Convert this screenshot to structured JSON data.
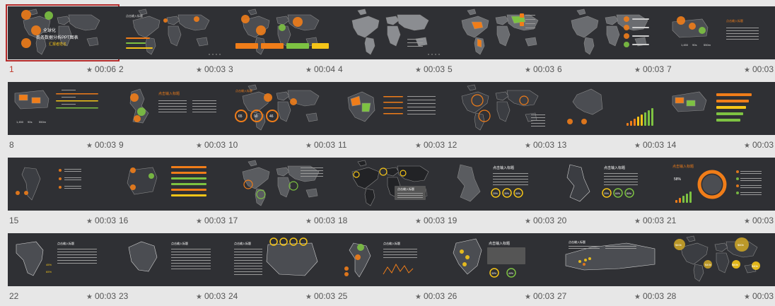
{
  "accent": "#b32a2a",
  "star_icon": "★",
  "slides": [
    {
      "number": "1",
      "duration": "00:06",
      "selected": true,
      "title_lines": [
        "全球化",
        "商务数据分析PPT图表",
        "汇报者姓名"
      ],
      "kind": "world-title"
    },
    {
      "number": "2",
      "duration": "00:03",
      "kind": "world-bars",
      "title": "点击输入标题"
    },
    {
      "number": "3",
      "duration": "00:04",
      "kind": "world-dots"
    },
    {
      "number": "4",
      "duration": "00:03",
      "kind": "world-grey"
    },
    {
      "number": "5",
      "duration": "00:03",
      "kind": "world-color"
    },
    {
      "number": "6",
      "duration": "00:03",
      "kind": "world-list"
    },
    {
      "number": "7",
      "duration": "00:03",
      "kind": "usa-title",
      "title": "点击输入标题",
      "stats": [
        "1,450",
        "90s",
        "550m"
      ]
    },
    {
      "number": "8",
      "duration": "00:03",
      "kind": "usa-lines",
      "stats": [
        "1,450",
        "90s",
        "550m"
      ]
    },
    {
      "number": "9",
      "duration": "00:03",
      "kind": "uk",
      "title": "点击输入标题"
    },
    {
      "number": "10",
      "duration": "00:03",
      "kind": "world-circles",
      "title": "点击输入标题",
      "stats": [
        "65",
        "90",
        "46"
      ]
    },
    {
      "number": "11",
      "duration": "00:03",
      "kind": "brazil"
    },
    {
      "number": "12",
      "duration": "00:03",
      "kind": "world-outline"
    },
    {
      "number": "13",
      "duration": "00:03",
      "kind": "australia"
    },
    {
      "number": "14",
      "duration": "00:03",
      "kind": "usa-bars"
    },
    {
      "number": "15",
      "duration": "00:03",
      "kind": "samerica"
    },
    {
      "number": "16",
      "duration": "00:03",
      "kind": "iberia"
    },
    {
      "number": "17",
      "duration": "00:03",
      "kind": "world-rings"
    },
    {
      "number": "18",
      "duration": "00:03",
      "kind": "world-dark",
      "title": "点击输入标题"
    },
    {
      "number": "19",
      "duration": "00:03",
      "kind": "uk-grey",
      "title": "点击输入标题",
      "stats": [
        "20%",
        "30%",
        "50%"
      ]
    },
    {
      "number": "20",
      "duration": "00:03",
      "kind": "uk-outline",
      "title": "点击输入标题",
      "stats": [
        "20%",
        "60%",
        "80%"
      ]
    },
    {
      "number": "21",
      "duration": "00:03",
      "kind": "globe",
      "title": "点击输入标题",
      "stats": [
        "58%"
      ]
    },
    {
      "number": "22",
      "duration": "00:03",
      "kind": "africa",
      "title": "点击输入标题",
      "stats": [
        "45%",
        "65%"
      ]
    },
    {
      "number": "23",
      "duration": "00:03",
      "kind": "brazil-outline",
      "title": "点击输入标题"
    },
    {
      "number": "24",
      "duration": "00:03",
      "kind": "europe",
      "title": "点击输入标题"
    },
    {
      "number": "25",
      "duration": "00:03",
      "kind": "samerica-chart",
      "title": "点击输入标题"
    },
    {
      "number": "26",
      "duration": "00:03",
      "kind": "scandinavia",
      "title": "点击输入标题",
      "stats": [
        "30%",
        "40%"
      ]
    },
    {
      "number": "27",
      "duration": "00:03",
      "kind": "russia",
      "title": "点击输入标题"
    },
    {
      "number": "28",
      "duration": "00:03",
      "kind": "world-gold",
      "stats": [
        "$80b",
        "$40b",
        "$40b",
        "$60b",
        "$40b"
      ]
    }
  ]
}
